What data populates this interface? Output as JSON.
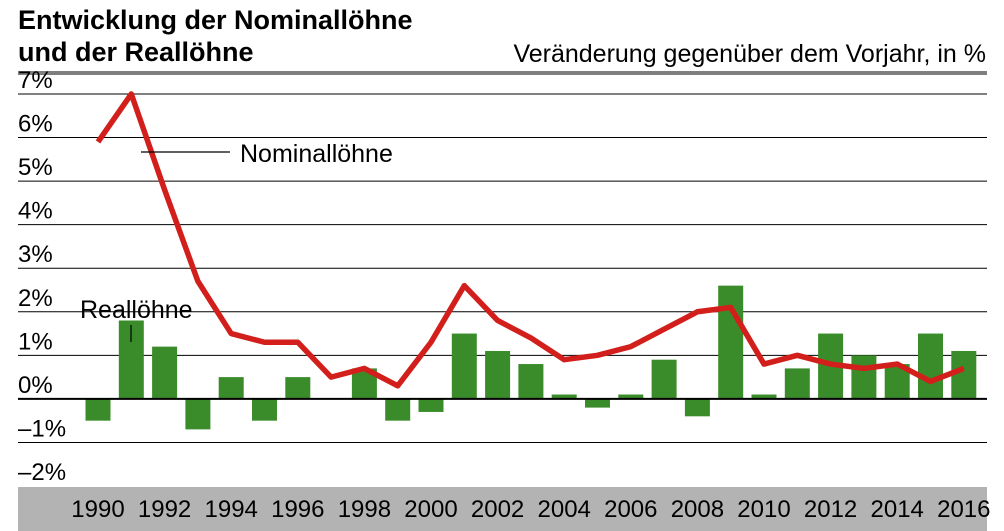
{
  "chart_data": {
    "type": "bar",
    "title_line1": "Entwicklung der Nominallöhne",
    "title_line2": "und der Reallöhne",
    "subtitle": "Veränderung gegenüber dem Vorjahr, in %",
    "ylim": [
      -2,
      7
    ],
    "y_ticks": [
      "–2%",
      "–1%",
      "0%",
      "1%",
      "2%",
      "3%",
      "4%",
      "5%",
      "6%",
      "7%"
    ],
    "x": [
      1990,
      1991,
      1992,
      1993,
      1994,
      1995,
      1996,
      1997,
      1998,
      1999,
      2000,
      2001,
      2002,
      2003,
      2004,
      2005,
      2006,
      2007,
      2008,
      2009,
      2010,
      2011,
      2012,
      2013,
      2014,
      2015,
      2016
    ],
    "x_tick_labels": [
      "1990",
      "1992",
      "1994",
      "1996",
      "1998",
      "2000",
      "2002",
      "2004",
      "2006",
      "2008",
      "2010",
      "2012",
      "2014",
      "2016"
    ],
    "series": [
      {
        "name": "Reallöhne",
        "type": "bar",
        "color": "#3a8c2a",
        "values": [
          -0.5,
          1.8,
          1.2,
          -0.7,
          0.5,
          -0.5,
          0.5,
          0.0,
          0.7,
          -0.5,
          -0.3,
          1.5,
          1.1,
          0.8,
          0.1,
          -0.2,
          0.1,
          0.9,
          -0.4,
          2.6,
          0.1,
          0.7,
          1.5,
          1.0,
          0.8,
          1.5,
          1.1
        ]
      },
      {
        "name": "Nominallöhne",
        "type": "line",
        "color": "#d21f1b",
        "values": [
          5.9,
          7.0,
          4.8,
          2.7,
          1.5,
          1.3,
          1.3,
          0.5,
          0.7,
          0.3,
          1.3,
          2.6,
          1.8,
          1.4,
          0.9,
          1.0,
          1.2,
          1.6,
          2.0,
          2.1,
          0.8,
          1.0,
          0.8,
          0.7,
          0.8,
          0.4,
          0.7
        ]
      }
    ],
    "legend": "annotations",
    "grid": true
  }
}
